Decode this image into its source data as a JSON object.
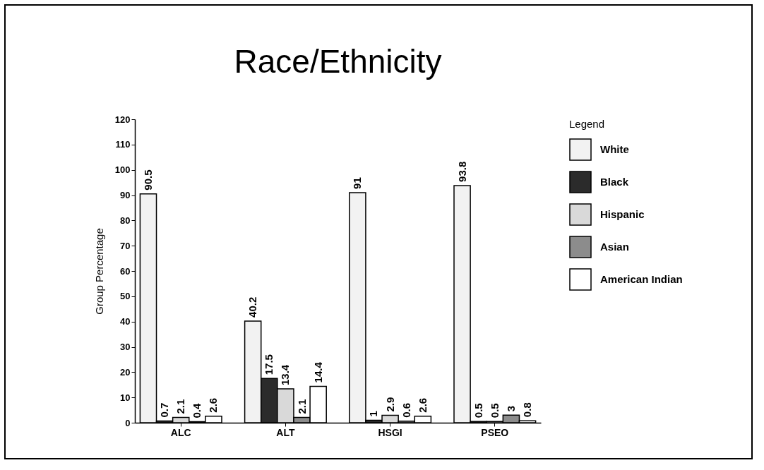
{
  "chart_data": {
    "type": "bar",
    "title": "Race/Ethnicity",
    "ylabel": "Group Percentage",
    "legend_title": "Legend",
    "legend": "top right",
    "data_labels": true,
    "grid": false,
    "categories": [
      "ALC",
      "ALT",
      "HSGI",
      "PSEO"
    ],
    "series": [
      {
        "name": "White",
        "color": "#f2f2f2",
        "values": [
          90.5,
          40.2,
          91,
          93.8
        ]
      },
      {
        "name": "Black",
        "color": "#2b2b2b",
        "values": [
          0.7,
          17.5,
          1,
          0.5
        ]
      },
      {
        "name": "Hispanic",
        "color": "#d9d9d9",
        "values": [
          2.1,
          13.4,
          2.9,
          0.5
        ]
      },
      {
        "name": "Asian",
        "color": "#8c8c8c",
        "values": [
          0.4,
          2.1,
          0.6,
          3
        ]
      },
      {
        "name": "American Indian",
        "color": "#ffffff",
        "values": [
          2.6,
          14.4,
          2.6,
          0.8
        ]
      }
    ],
    "ylim": [
      0,
      120
    ],
    "yticks": [
      0,
      10,
      20,
      30,
      40,
      50,
      60,
      70,
      80,
      90,
      100,
      110,
      120
    ]
  }
}
